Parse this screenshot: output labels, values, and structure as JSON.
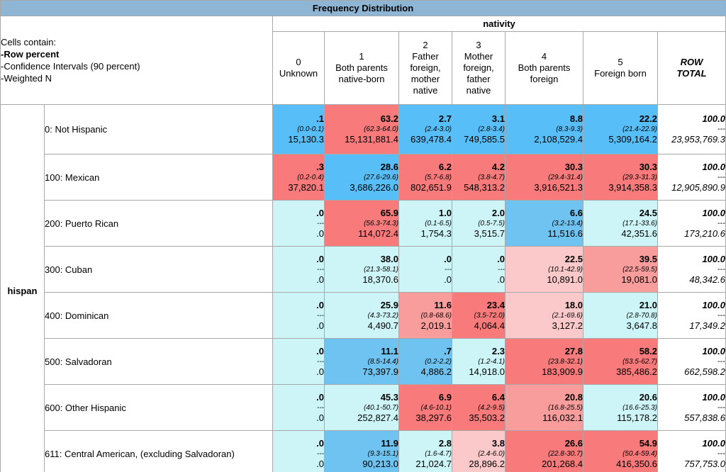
{
  "colors": {
    "title_bg": "#8eb6d4",
    "b3": "#57bef7",
    "b2": "#6fc3f0",
    "b1": "#cdf5f7",
    "r3": "#f87a7a",
    "r2": "#f99c9c",
    "r1": "#fbc9c9",
    "w": "#ffffff"
  },
  "chart_data": {
    "type": "table",
    "title": "Frequency Distribution",
    "legend": [
      "Cells contain:",
      "-Row percent",
      "-Confidence Intervals (90 percent)",
      "-Weighted N"
    ],
    "col_variable": "nativity",
    "row_variable": "hispan",
    "columns": [
      {
        "code": "0",
        "label": "Unknown"
      },
      {
        "code": "1",
        "label": "Both parents native-born"
      },
      {
        "code": "2",
        "label": "Father foreign, mother native"
      },
      {
        "code": "3",
        "label": "Mother foreign, father native"
      },
      {
        "code": "4",
        "label": "Both parents foreign"
      },
      {
        "code": "5",
        "label": "Foreign born"
      }
    ],
    "row_total_header": [
      "ROW",
      "TOTAL"
    ],
    "rows": [
      {
        "label": "0: Not Hispanic",
        "cells": [
          {
            "pct": ".1",
            "ci": "(0.0-0.1)",
            "n": "15,130.3",
            "bg": "b3"
          },
          {
            "pct": "63.2",
            "ci": "(62.3-64.0)",
            "n": "15,131,881.4",
            "bg": "r3"
          },
          {
            "pct": "2.7",
            "ci": "(2.4-3.0)",
            "n": "639,478.4",
            "bg": "b3"
          },
          {
            "pct": "3.1",
            "ci": "(2.8-3.4)",
            "n": "749,585.5",
            "bg": "b3"
          },
          {
            "pct": "8.8",
            "ci": "(8.3-9.3)",
            "n": "2,108,529.4",
            "bg": "b3"
          },
          {
            "pct": "22.2",
            "ci": "(21.4-22.9)",
            "n": "5,309,164.2",
            "bg": "b3"
          }
        ],
        "total": {
          "pct": "100.0",
          "ci": "---",
          "n": "23,953,769.3"
        }
      },
      {
        "label": "100: Mexican",
        "cells": [
          {
            "pct": ".3",
            "ci": "(0.2-0.4)",
            "n": "37,820.1",
            "bg": "r3"
          },
          {
            "pct": "28.6",
            "ci": "(27.6-29.6)",
            "n": "3,686,226.0",
            "bg": "b3"
          },
          {
            "pct": "6.2",
            "ci": "(5.7-6.8)",
            "n": "802,651.9",
            "bg": "r3"
          },
          {
            "pct": "4.2",
            "ci": "(3.8-4.7)",
            "n": "548,313.2",
            "bg": "r3"
          },
          {
            "pct": "30.3",
            "ci": "(29.4-31.4)",
            "n": "3,916,521.3",
            "bg": "r3"
          },
          {
            "pct": "30.3",
            "ci": "(29.3-31.3)",
            "n": "3,914,358.3",
            "bg": "r3"
          }
        ],
        "total": {
          "pct": "100.0",
          "ci": "---",
          "n": "12,905,890.9"
        }
      },
      {
        "label": "200: Puerto Rican",
        "cells": [
          {
            "pct": ".0",
            "ci": "---",
            "n": ".0",
            "bg": "b1"
          },
          {
            "pct": "65.9",
            "ci": "(56.3-74.3)",
            "n": "114,072.4",
            "bg": "r3"
          },
          {
            "pct": "1.0",
            "ci": "(0.1-6.5)",
            "n": "1,754.3",
            "bg": "b1"
          },
          {
            "pct": "2.0",
            "ci": "(0.5-7.5)",
            "n": "3,515.7",
            "bg": "b1"
          },
          {
            "pct": "6.6",
            "ci": "(3.2-13.4)",
            "n": "11,516.6",
            "bg": "b2"
          },
          {
            "pct": "24.5",
            "ci": "(17.1-33.6)",
            "n": "42,351.6",
            "bg": "b1"
          }
        ],
        "total": {
          "pct": "100.0",
          "ci": "---",
          "n": "173,210.6"
        }
      },
      {
        "label": "300: Cuban",
        "cells": [
          {
            "pct": ".0",
            "ci": "---",
            "n": ".0",
            "bg": "b1"
          },
          {
            "pct": "38.0",
            "ci": "(21.3-58.1)",
            "n": "18,370.6",
            "bg": "b1"
          },
          {
            "pct": ".0",
            "ci": "---",
            "n": ".0",
            "bg": "b1"
          },
          {
            "pct": ".0",
            "ci": "---",
            "n": ".0",
            "bg": "b1"
          },
          {
            "pct": "22.5",
            "ci": "(10.1-42.9)",
            "n": "10,891.0",
            "bg": "r1"
          },
          {
            "pct": "39.5",
            "ci": "(22.5-59.5)",
            "n": "19,081.0",
            "bg": "r2"
          }
        ],
        "total": {
          "pct": "100.0",
          "ci": "---",
          "n": "48,342.6"
        }
      },
      {
        "label": "400: Dominican",
        "cells": [
          {
            "pct": ".0",
            "ci": "---",
            "n": ".0",
            "bg": "b1"
          },
          {
            "pct": "25.9",
            "ci": "(4.3-73.2)",
            "n": "4,490.7",
            "bg": "b1"
          },
          {
            "pct": "11.6",
            "ci": "(0.8-68.6)",
            "n": "2,019.1",
            "bg": "r2"
          },
          {
            "pct": "23.4",
            "ci": "(3.5-72.0)",
            "n": "4,064.4",
            "bg": "r3"
          },
          {
            "pct": "18.0",
            "ci": "(2.1-69.6)",
            "n": "3,127.2",
            "bg": "r1"
          },
          {
            "pct": "21.0",
            "ci": "(2.8-70.8)",
            "n": "3,647.8",
            "bg": "b1"
          }
        ],
        "total": {
          "pct": "100.0",
          "ci": "---",
          "n": "17,349.2"
        }
      },
      {
        "label": "500: Salvadoran",
        "cells": [
          {
            "pct": ".0",
            "ci": "---",
            "n": ".0",
            "bg": "b1"
          },
          {
            "pct": "11.1",
            "ci": "(8.5-14.4)",
            "n": "73,397.9",
            "bg": "b2"
          },
          {
            "pct": ".7",
            "ci": "(0.2-2.2)",
            "n": "4,886.2",
            "bg": "b2"
          },
          {
            "pct": "2.3",
            "ci": "(1.2-4.1)",
            "n": "14,918.0",
            "bg": "b1"
          },
          {
            "pct": "27.8",
            "ci": "(23.8-32.1)",
            "n": "183,909.9",
            "bg": "r3"
          },
          {
            "pct": "58.2",
            "ci": "(53.5-62.7)",
            "n": "385,486.2",
            "bg": "r3"
          }
        ],
        "total": {
          "pct": "100.0",
          "ci": "---",
          "n": "662,598.2"
        }
      },
      {
        "label": "600: Other Hispanic",
        "cells": [
          {
            "pct": ".0",
            "ci": "---",
            "n": ".0",
            "bg": "b1"
          },
          {
            "pct": "45.3",
            "ci": "(40.1-50.7)",
            "n": "252,827.4",
            "bg": "b1"
          },
          {
            "pct": "6.9",
            "ci": "(4.6-10.1)",
            "n": "38,297.6",
            "bg": "r3"
          },
          {
            "pct": "6.4",
            "ci": "(4.2-9.5)",
            "n": "35,503.2",
            "bg": "r3"
          },
          {
            "pct": "20.8",
            "ci": "(16.8-25.5)",
            "n": "116,032.1",
            "bg": "r2"
          },
          {
            "pct": "20.6",
            "ci": "(16.6-25.3)",
            "n": "115,178.2",
            "bg": "b1"
          }
        ],
        "total": {
          "pct": "100.0",
          "ci": "---",
          "n": "557,838.6"
        }
      },
      {
        "label": "611: Central American, (excluding Salvadoran)",
        "cells": [
          {
            "pct": ".0",
            "ci": "---",
            "n": ".0",
            "bg": "b1"
          },
          {
            "pct": "11.9",
            "ci": "(9.3-15.1)",
            "n": "90,213.0",
            "bg": "b2"
          },
          {
            "pct": "2.8",
            "ci": "(1.6-4.7)",
            "n": "21,024.7",
            "bg": "b1"
          },
          {
            "pct": "3.8",
            "ci": "(2.4-6.0)",
            "n": "28,896.2",
            "bg": "r1"
          },
          {
            "pct": "26.6",
            "ci": "(22.8-30.7)",
            "n": "201,268.4",
            "bg": "r3"
          },
          {
            "pct": "54.9",
            "ci": "(50.4-59.4)",
            "n": "416,350.6",
            "bg": "r3"
          }
        ],
        "total": {
          "pct": "100.0",
          "ci": "---",
          "n": "757,753.0"
        }
      }
    ]
  }
}
